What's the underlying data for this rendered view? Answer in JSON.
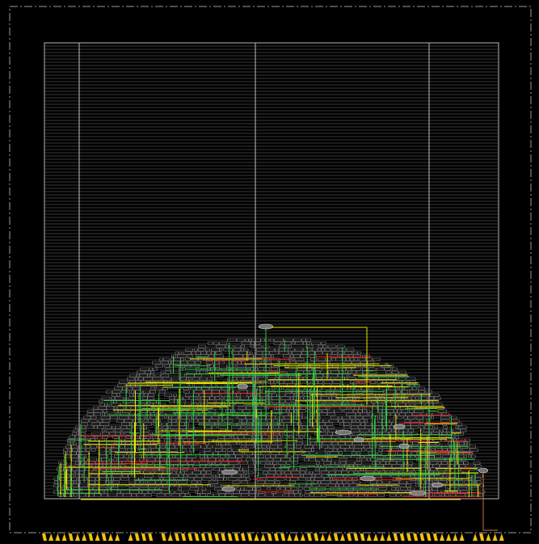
{
  "view": {
    "background": "#000000",
    "boundary_color": "#9a9a9a",
    "die_color": "#b8b8b8",
    "row_color": "#6e6e6e",
    "cell_color": "#a8a8a8",
    "route_green": "#2ecc40",
    "route_yellow": "#e8e800",
    "route_red": "#ff2020",
    "pin_color": "#f2c40f",
    "macro_fill": "#8a8a8a"
  },
  "legend_icons": [
    "io-pin-icon",
    "standard-cell-icon",
    "macro-icon"
  ]
}
